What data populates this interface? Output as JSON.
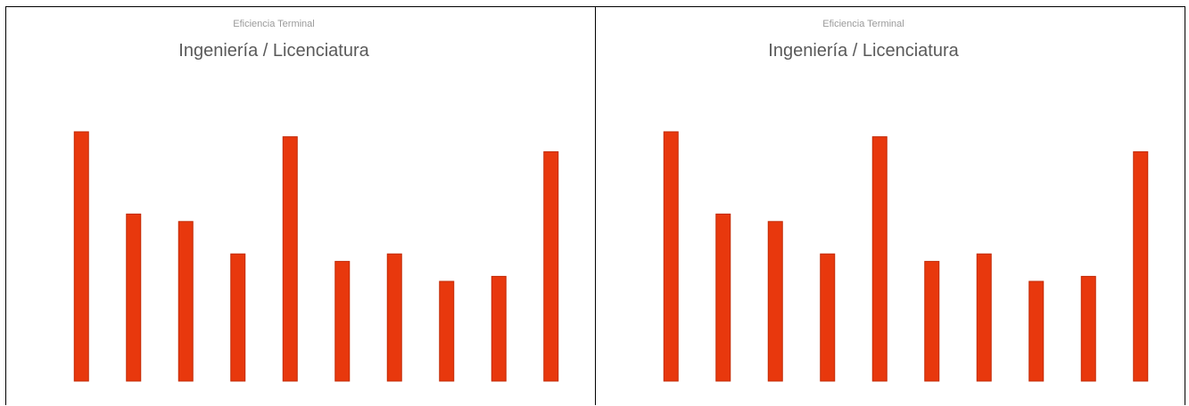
{
  "colors": {
    "bar": "#e8380d",
    "bar_edge": "#c22a06"
  },
  "chart_data": [
    {
      "type": "bar",
      "subtitle": "Eficiencia Terminal",
      "title": "Ingeniería / Licenciatura",
      "categories": [
        "",
        "",
        "",
        "",
        "",
        "",
        "",
        "",
        "",
        ""
      ],
      "values": [
        100,
        67,
        64,
        51,
        98,
        48,
        51,
        40,
        42,
        92
      ],
      "ylim": [
        0,
        125
      ],
      "yticks": [
        "",
        "",
        "",
        "",
        "",
        "",
        ""
      ],
      "grid": false,
      "legend": "none"
    },
    {
      "type": "bar",
      "subtitle": "Eficiencia Terminal",
      "title": "Ingeniería / Licenciatura",
      "categories": [
        "",
        "",
        "",
        "",
        "",
        "",
        "",
        "",
        "",
        ""
      ],
      "values": [
        100,
        67,
        64,
        51,
        98,
        48,
        51,
        40,
        42,
        92
      ],
      "ylim": [
        0,
        125
      ],
      "yticks": [
        "",
        "",
        "",
        "",
        "",
        "",
        ""
      ],
      "grid": false,
      "legend": "none"
    }
  ]
}
